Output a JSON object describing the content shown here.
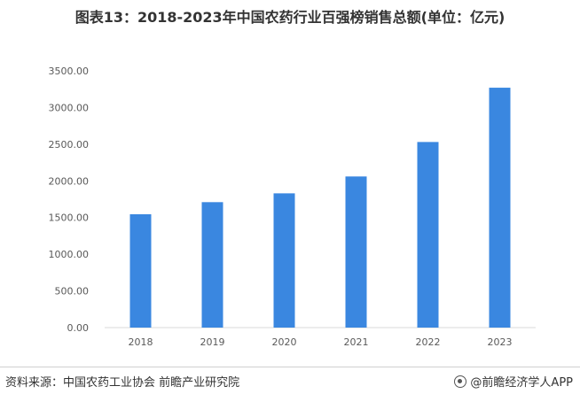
{
  "chart_data": {
    "type": "bar",
    "title": "图表13：2018-2023年中国农药行业百强榜销售总额(单位：亿元)",
    "categories": [
      "2018",
      "2019",
      "2020",
      "2021",
      "2022",
      "2023"
    ],
    "values": [
      1545,
      1710,
      1830,
      2060,
      2530,
      3270
    ],
    "yticks": [
      "0.00",
      "500.00",
      "1000.00",
      "1500.00",
      "2000.00",
      "2500.00",
      "3000.00",
      "3500.00"
    ],
    "ylim": [
      0,
      3500
    ],
    "xlabel": "",
    "ylabel": "",
    "grid": false,
    "legend": "none",
    "bar_color": "#3a87e0"
  },
  "footer": {
    "source": "资料来源：中国农药工业协会 前瞻产业研究院",
    "brand": "@前瞻经济学人APP"
  }
}
